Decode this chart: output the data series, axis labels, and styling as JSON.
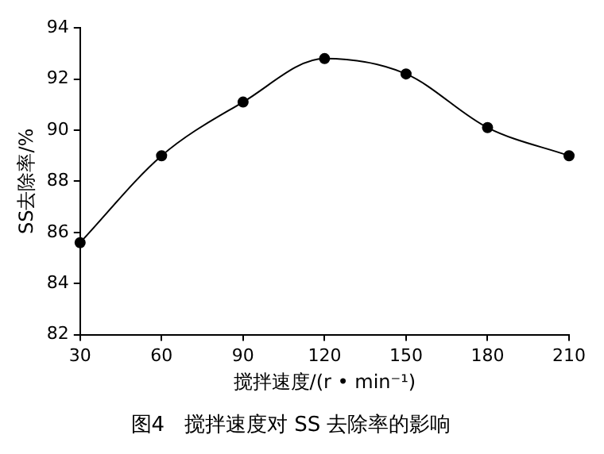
{
  "chart_data": {
    "type": "line",
    "title": "图4   搅拌速度对 SS 去除率的影响",
    "xlabel": "搅拌速度/(r • min⁻¹)",
    "ylabel": "SS去除率/%",
    "x": [
      30,
      60,
      90,
      120,
      150,
      180,
      210
    ],
    "series": [
      {
        "color": "#000000",
        "values": [
          85.6,
          89.0,
          91.1,
          92.8,
          92.2,
          90.1,
          89.0
        ]
      }
    ],
    "xlim": [
      30,
      210
    ],
    "xticks": [
      30,
      60,
      90,
      120,
      150,
      180,
      210
    ],
    "ylim": [
      82,
      94
    ],
    "yticks": [
      82,
      84,
      86,
      88,
      90,
      92,
      94
    ],
    "grid": false,
    "legend": false,
    "marker": "circle",
    "line_style": "solid"
  }
}
